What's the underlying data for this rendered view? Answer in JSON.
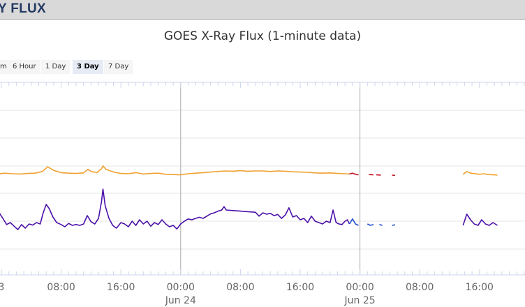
{
  "header": {
    "title": "Y FLUX"
  },
  "chart_data": {
    "type": "line",
    "title": "GOES X-Ray Flux (1-minute data)",
    "range_selector": {
      "buttons": [
        "m",
        "6 Hour",
        "1 Day",
        "3 Day",
        "7 Day"
      ],
      "selected": "3 Day"
    },
    "x_unit": "hours since Jun 23 00:00",
    "x_ticks": [
      {
        "hour": 0,
        "label": "3"
      },
      {
        "hour": 8,
        "label": "08:00"
      },
      {
        "hour": 16,
        "label": "16:00"
      },
      {
        "hour": 24,
        "label": "00:00",
        "date": "Jun 24"
      },
      {
        "hour": 32,
        "label": "08:00"
      },
      {
        "hour": 40,
        "label": "16:00"
      },
      {
        "hour": 48,
        "label": "00:00",
        "date": "Jun 25"
      },
      {
        "hour": 56,
        "label": "08:00"
      },
      {
        "hour": 64,
        "label": "16:00"
      }
    ],
    "day_boundaries": [
      24,
      48
    ],
    "series": [
      {
        "color": "#f0a030",
        "segments": [
          [
            [
              -0.3,
              0.7
            ],
            [
              0.5,
              0.72
            ],
            [
              1.5,
              0.7
            ],
            [
              2.5,
              0.69
            ],
            [
              3.5,
              0.71
            ],
            [
              4.5,
              0.72
            ],
            [
              5.5,
              0.78
            ],
            [
              6.2,
              0.95
            ],
            [
              7.0,
              0.82
            ],
            [
              8.0,
              0.74
            ],
            [
              9.0,
              0.72
            ],
            [
              10.0,
              0.71
            ],
            [
              11.0,
              0.73
            ],
            [
              11.6,
              0.86
            ],
            [
              12.0,
              0.78
            ],
            [
              12.8,
              0.74
            ],
            [
              13.4,
              0.88
            ],
            [
              13.6,
              0.98
            ],
            [
              14.0,
              0.86
            ],
            [
              14.6,
              0.8
            ],
            [
              15.2,
              0.75
            ],
            [
              16.0,
              0.71
            ],
            [
              17.0,
              0.7
            ],
            [
              18.0,
              0.74
            ],
            [
              19.0,
              0.69
            ],
            [
              20.0,
              0.71
            ],
            [
              21.0,
              0.72
            ],
            [
              22.0,
              0.68
            ],
            [
              23.0,
              0.67
            ],
            [
              24.0,
              0.66
            ],
            [
              25.0,
              0.7
            ],
            [
              26.0,
              0.72
            ],
            [
              27.0,
              0.74
            ],
            [
              28.0,
              0.76
            ],
            [
              29.0,
              0.78
            ],
            [
              30.0,
              0.8
            ],
            [
              31.0,
              0.79
            ],
            [
              32.0,
              0.81
            ],
            [
              33.0,
              0.79
            ],
            [
              34.0,
              0.8
            ],
            [
              35.0,
              0.8
            ],
            [
              36.0,
              0.78
            ],
            [
              37.0,
              0.8
            ],
            [
              38.0,
              0.79
            ],
            [
              39.0,
              0.77
            ],
            [
              40.0,
              0.76
            ],
            [
              41.0,
              0.75
            ],
            [
              42.0,
              0.73
            ],
            [
              43.0,
              0.72
            ],
            [
              44.0,
              0.73
            ],
            [
              45.0,
              0.71
            ],
            [
              46.0,
              0.7
            ],
            [
              46.6,
              0.69
            ]
          ],
          [
            [
              61.8,
              0.68
            ],
            [
              62.3,
              0.78
            ],
            [
              62.8,
              0.72
            ],
            [
              63.5,
              0.7
            ],
            [
              64.0,
              0.68
            ],
            [
              64.6,
              0.7
            ],
            [
              65.2,
              0.67
            ],
            [
              66.0,
              0.66
            ],
            [
              66.4,
              0.65
            ]
          ]
        ]
      },
      {
        "color": "#c01020",
        "segments": [
          [
            [
              46.6,
              0.69
            ],
            [
              47.0,
              0.72
            ],
            [
              47.4,
              0.68
            ],
            [
              47.8,
              0.66
            ]
          ],
          [
            [
              49.2,
              0.67
            ],
            [
              49.8,
              0.66
            ]
          ],
          [
            [
              50.2,
              0.66
            ],
            [
              50.8,
              0.65
            ]
          ],
          [
            [
              52.3,
              0.65
            ],
            [
              52.7,
              0.64
            ]
          ]
        ]
      },
      {
        "color": "#4a10a8",
        "segments": [
          [
            [
              -0.3,
              -0.7
            ],
            [
              0.2,
              -0.9
            ],
            [
              0.7,
              -1.12
            ],
            [
              1.2,
              -1.05
            ],
            [
              1.7,
              -1.18
            ],
            [
              2.2,
              -1.3
            ],
            [
              2.7,
              -1.12
            ],
            [
              3.2,
              -1.25
            ],
            [
              3.7,
              -1.1
            ],
            [
              4.2,
              -1.14
            ],
            [
              4.7,
              -1.05
            ],
            [
              5.2,
              -1.1
            ],
            [
              5.6,
              -0.7
            ],
            [
              6.0,
              -0.4
            ],
            [
              6.4,
              -0.55
            ],
            [
              6.9,
              -0.85
            ],
            [
              7.4,
              -1.05
            ],
            [
              8.0,
              -1.12
            ],
            [
              8.5,
              -1.2
            ],
            [
              9.0,
              -1.08
            ],
            [
              9.5,
              -1.15
            ],
            [
              10.0,
              -1.12
            ],
            [
              10.5,
              -1.15
            ],
            [
              11.0,
              -1.1
            ],
            [
              11.5,
              -0.8
            ],
            [
              12.0,
              -1.02
            ],
            [
              12.5,
              -1.1
            ],
            [
              13.0,
              -0.9
            ],
            [
              13.4,
              -0.3
            ],
            [
              13.6,
              0.15
            ],
            [
              13.9,
              -0.45
            ],
            [
              14.4,
              -0.9
            ],
            [
              14.9,
              -1.15
            ],
            [
              15.4,
              -1.25
            ],
            [
              16.0,
              -1.05
            ],
            [
              16.5,
              -1.1
            ],
            [
              17.0,
              -1.2
            ],
            [
              17.5,
              -1.0
            ],
            [
              18.0,
              -1.15
            ],
            [
              18.5,
              -0.95
            ],
            [
              19.0,
              -1.1
            ],
            [
              19.5,
              -1.0
            ],
            [
              20.0,
              -1.18
            ],
            [
              20.5,
              -1.05
            ],
            [
              21.0,
              -1.12
            ],
            [
              21.5,
              -0.95
            ],
            [
              22.0,
              -1.1
            ],
            [
              22.5,
              -1.2
            ],
            [
              23.0,
              -1.15
            ],
            [
              23.5,
              -1.28
            ],
            [
              24.0,
              -1.1
            ],
            [
              24.5,
              -1.0
            ],
            [
              25.0,
              -0.92
            ],
            [
              25.5,
              -0.95
            ],
            [
              26.0,
              -0.9
            ],
            [
              26.5,
              -0.86
            ],
            [
              27.0,
              -0.9
            ],
            [
              27.5,
              -0.82
            ],
            [
              28.0,
              -0.74
            ],
            [
              28.5,
              -0.7
            ],
            [
              29.0,
              -0.64
            ],
            [
              29.5,
              -0.6
            ],
            [
              29.8,
              -0.48
            ],
            [
              30.1,
              -0.6
            ],
            [
              31.0,
              -0.62
            ],
            [
              32.0,
              -0.64
            ],
            [
              33.0,
              -0.66
            ],
            [
              34.0,
              -0.68
            ],
            [
              34.5,
              -0.82
            ],
            [
              35.0,
              -0.7
            ],
            [
              35.5,
              -0.75
            ],
            [
              36.0,
              -0.72
            ],
            [
              36.5,
              -0.8
            ],
            [
              37.0,
              -0.76
            ],
            [
              37.5,
              -0.9
            ],
            [
              38.0,
              -0.78
            ],
            [
              38.5,
              -0.52
            ],
            [
              39.0,
              -0.85
            ],
            [
              39.5,
              -0.8
            ],
            [
              40.0,
              -0.95
            ],
            [
              40.5,
              -0.9
            ],
            [
              41.0,
              -1.05
            ],
            [
              41.5,
              -0.82
            ],
            [
              42.0,
              -1.0
            ],
            [
              42.5,
              -1.05
            ],
            [
              43.0,
              -1.1
            ],
            [
              43.5,
              -1.0
            ],
            [
              44.0,
              -1.05
            ],
            [
              44.4,
              -0.6
            ],
            [
              44.8,
              -1.05
            ],
            [
              45.2,
              -1.1
            ],
            [
              45.6,
              -1.12
            ],
            [
              46.0,
              -1.0
            ],
            [
              46.3,
              -0.95
            ],
            [
              46.6,
              -1.1
            ]
          ],
          [
            [
              61.8,
              -1.15
            ],
            [
              62.3,
              -0.75
            ],
            [
              62.8,
              -0.95
            ],
            [
              63.3,
              -1.1
            ],
            [
              63.8,
              -1.15
            ],
            [
              64.3,
              -0.95
            ],
            [
              64.8,
              -1.1
            ],
            [
              65.3,
              -1.15
            ],
            [
              65.8,
              -1.05
            ],
            [
              66.4,
              -1.15
            ]
          ]
        ]
      },
      {
        "color": "#2050d0",
        "segments": [
          [
            [
              46.6,
              -1.1
            ],
            [
              47.0,
              -0.92
            ],
            [
              47.4,
              -1.1
            ],
            [
              47.8,
              -1.15
            ]
          ],
          [
            [
              49.0,
              -1.1
            ],
            [
              49.4,
              -1.15
            ],
            [
              49.8,
              -1.12
            ]
          ],
          [
            [
              50.6,
              -1.12
            ],
            [
              51.0,
              -1.15
            ]
          ],
          [
            [
              52.3,
              -1.15
            ],
            [
              52.7,
              -1.13
            ]
          ]
        ]
      }
    ]
  }
}
